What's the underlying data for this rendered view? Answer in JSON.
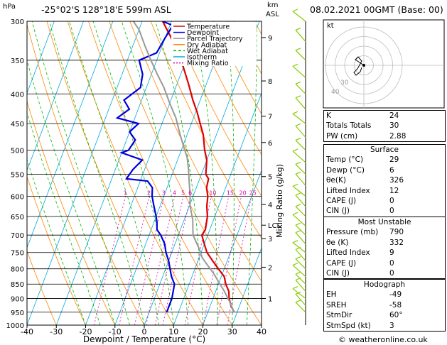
{
  "header": {
    "hpa_label": "hPa",
    "location": "-25°02'S  128°18'E  599m  ASL",
    "km_label": "km",
    "asl_label": "ASL",
    "datetime": "08.02.2021  00GMT  (Base: 00)"
  },
  "legend": [
    "Temperature",
    "Dewpoint",
    "Parcel Trajectory",
    "Dry Adiabat",
    "Wet Adiabat",
    "Isotherm",
    "Mixing Ratio"
  ],
  "colors": {
    "temperature": "#dd0000",
    "dewpoint": "#0000dd",
    "parcel": "#999999",
    "dry_adiabat": "#ff8800",
    "wet_adiabat": "#00bb00",
    "isotherm": "#00aadd",
    "mixing_ratio": "#dd00aa",
    "wind": "#88cc00"
  },
  "chart_data": {
    "type": "line",
    "xlabel": "Dewpoint / Temperature (°C)",
    "ylabel": "",
    "pressure_ticks": [
      300,
      350,
      400,
      450,
      500,
      550,
      600,
      650,
      700,
      750,
      800,
      850,
      900,
      950,
      1000
    ],
    "temperature_ticks": [
      -40,
      -30,
      -20,
      -10,
      0,
      10,
      20,
      30,
      40
    ],
    "xlim": [
      -40,
      40
    ],
    "ylim_hpa": [
      300,
      1000
    ],
    "km_ticks": [
      {
        "label": "9",
        "p": 320
      },
      {
        "label": "8",
        "p": 380
      },
      {
        "label": "7",
        "p": 437
      },
      {
        "label": "6",
        "p": 485
      },
      {
        "label": "5",
        "p": 555
      },
      {
        "label": "4",
        "p": 620
      },
      {
        "label": "LCL",
        "p": 673
      },
      {
        "label": "3",
        "p": 710
      },
      {
        "label": "2",
        "p": 795
      },
      {
        "label": "1",
        "p": 900
      }
    ],
    "mixing_ratio_label": "Mixing Ratio (g/kg)",
    "mixing_ratio_values": [
      "1",
      "2",
      "3",
      "4",
      "5",
      "6",
      "10",
      "15",
      "20",
      "25"
    ],
    "series": [
      {
        "name": "Temperature",
        "points": [
          [
            29,
            950
          ],
          [
            27,
            925
          ],
          [
            25.5,
            900
          ],
          [
            24.5,
            875
          ],
          [
            22.5,
            850
          ],
          [
            21,
            825
          ],
          [
            18,
            800
          ],
          [
            15,
            775
          ],
          [
            12,
            750
          ],
          [
            10,
            725
          ],
          [
            8,
            700
          ],
          [
            8.5,
            685
          ],
          [
            7.5,
            650
          ],
          [
            6,
            625
          ],
          [
            5,
            600
          ],
          [
            3.5,
            580
          ],
          [
            3,
            560
          ],
          [
            1.5,
            550
          ],
          [
            0,
            520
          ],
          [
            -2,
            500
          ],
          [
            -4.5,
            470
          ],
          [
            -7,
            450
          ],
          [
            -9.5,
            430
          ],
          [
            -12.5,
            410
          ],
          [
            -16,
            385
          ],
          [
            -20,
            360
          ],
          [
            -24,
            340
          ],
          [
            -28,
            320
          ],
          [
            -33,
            300
          ]
        ]
      },
      {
        "name": "Dewpoint",
        "points": [
          [
            6,
            950
          ],
          [
            6,
            925
          ],
          [
            6,
            900
          ],
          [
            5.5,
            875
          ],
          [
            5,
            850
          ],
          [
            3,
            825
          ],
          [
            1.5,
            800
          ],
          [
            0,
            775
          ],
          [
            -2,
            750
          ],
          [
            -3.5,
            725
          ],
          [
            -6,
            700
          ],
          [
            -8,
            685
          ],
          [
            -9,
            665
          ],
          [
            -10,
            650
          ],
          [
            -12,
            625
          ],
          [
            -14,
            600
          ],
          [
            -15,
            580
          ],
          [
            -17.5,
            565
          ],
          [
            -25,
            560
          ],
          [
            -24,
            540
          ],
          [
            -22,
            520
          ],
          [
            -30,
            505
          ],
          [
            -28,
            500
          ],
          [
            -27,
            480
          ],
          [
            -30,
            465
          ],
          [
            -28,
            450
          ],
          [
            -36,
            440
          ],
          [
            -33,
            425
          ],
          [
            -36,
            410
          ],
          [
            -32,
            390
          ],
          [
            -33,
            370
          ],
          [
            -36,
            350
          ],
          [
            -31,
            340
          ],
          [
            -30,
            320
          ],
          [
            -29,
            305
          ],
          [
            -33,
            300
          ]
        ]
      },
      {
        "name": "Parcel Trajectory",
        "points": [
          [
            29,
            950
          ],
          [
            26,
            910
          ],
          [
            23,
            875
          ],
          [
            20,
            845
          ],
          [
            17,
            815
          ],
          [
            14,
            790
          ],
          [
            11,
            765
          ],
          [
            9,
            740
          ],
          [
            7,
            720
          ],
          [
            5,
            700
          ],
          [
            4,
            680
          ],
          [
            3,
            660
          ],
          [
            1.5,
            640
          ],
          [
            0,
            620
          ],
          [
            -1,
            600
          ],
          [
            -3,
            570
          ],
          [
            -5,
            540
          ],
          [
            -7,
            515
          ],
          [
            -10,
            490
          ],
          [
            -13,
            465
          ],
          [
            -16,
            440
          ],
          [
            -20,
            415
          ],
          [
            -24,
            390
          ],
          [
            -28,
            370
          ],
          [
            -32,
            350
          ],
          [
            -36,
            330
          ],
          [
            -40,
            310
          ],
          [
            -43,
            300
          ]
        ]
      }
    ]
  },
  "hodograph": {
    "kt_label": "kt",
    "ring_labels": [
      "40",
      "30"
    ]
  },
  "indices": {
    "rows": [
      {
        "k": "K",
        "v": "24"
      },
      {
        "k": "Totals Totals",
        "v": "30"
      },
      {
        "k": "PW (cm)",
        "v": "2.88"
      }
    ],
    "surface_title": "Surface",
    "surface": [
      {
        "k": "Temp (°C)",
        "v": "29"
      },
      {
        "k": "Dewp (°C)",
        "v": "6"
      },
      {
        "k": "θe(K)",
        "v": "326"
      },
      {
        "k": "Lifted Index",
        "v": "12"
      },
      {
        "k": "CAPE (J)",
        "v": "0"
      },
      {
        "k": "CIN (J)",
        "v": "0"
      }
    ],
    "mu_title": "Most Unstable",
    "mu": [
      {
        "k": "Pressure (mb)",
        "v": "790"
      },
      {
        "k": "θe (K)",
        "v": "332"
      },
      {
        "k": "Lifted Index",
        "v": "9"
      },
      {
        "k": "CAPE (J)",
        "v": "0"
      },
      {
        "k": "CIN (J)",
        "v": "0"
      }
    ],
    "hodo_title": "Hodograph",
    "hodo": [
      {
        "k": "EH",
        "v": "-49"
      },
      {
        "k": "SREH",
        "v": "-58"
      },
      {
        "k": "StmDir",
        "v": "60°"
      },
      {
        "k": "StmSpd (kt)",
        "v": "3"
      }
    ]
  },
  "copyright": "© weatheronline.co.uk"
}
